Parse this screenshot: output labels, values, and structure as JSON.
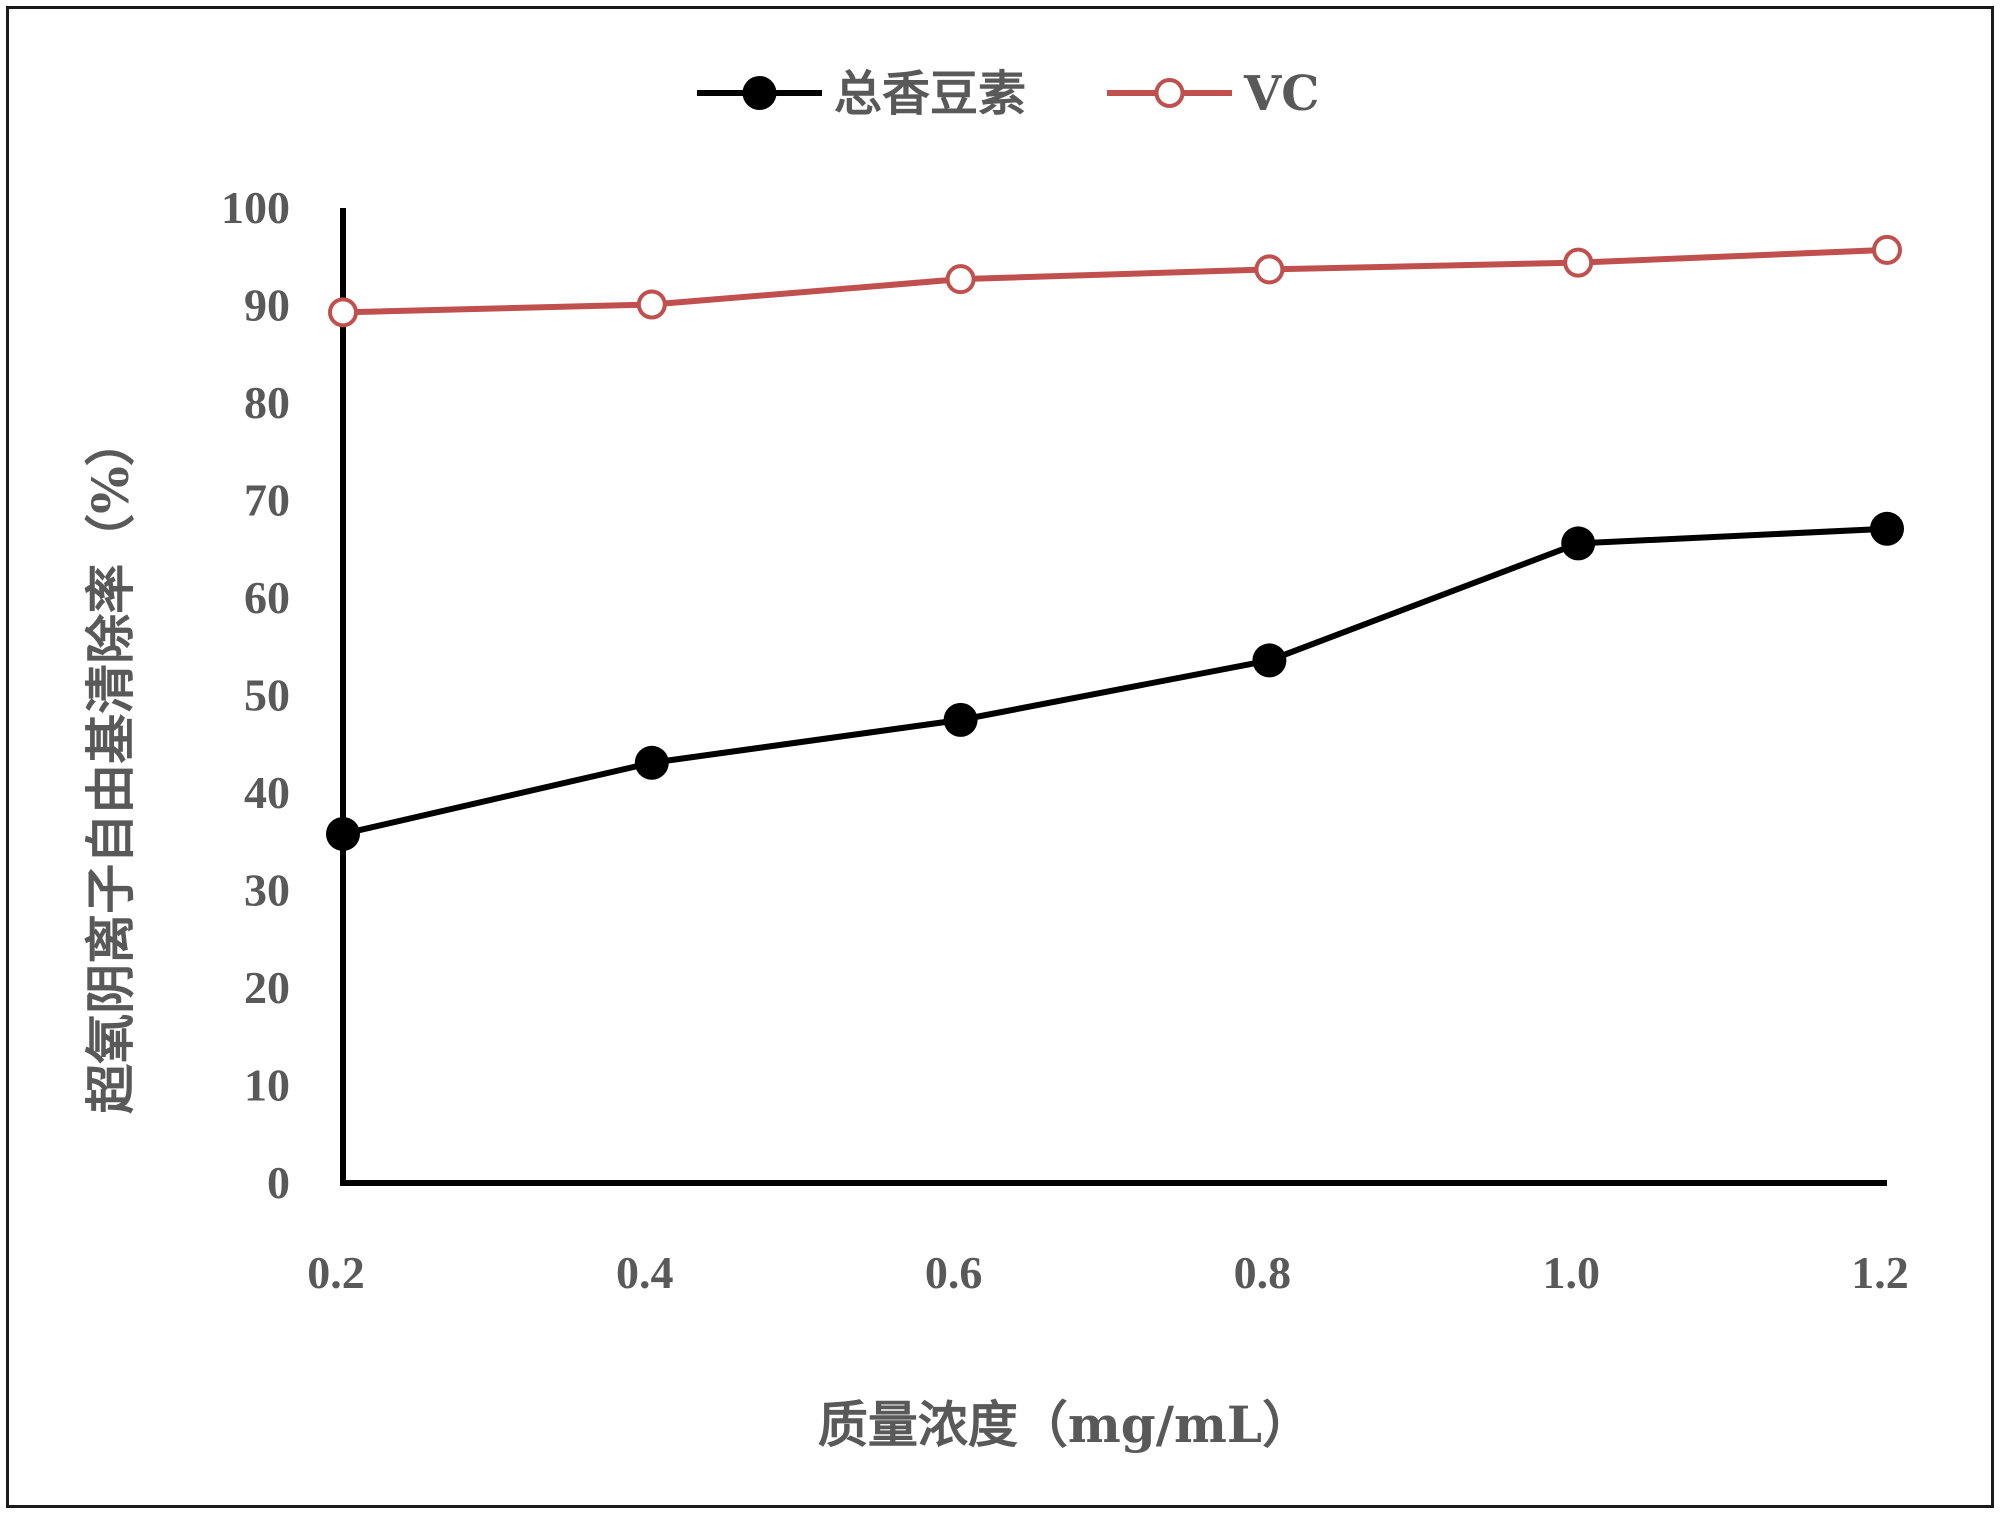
{
  "chart_data": {
    "type": "line",
    "title": "",
    "xlabel": "质量浓度（mg/mL）",
    "ylabel": "超氧阴离子自由基清除率（%）",
    "categories": [
      "0.2",
      "0.4",
      "0.6",
      "0.8",
      "1.0",
      "1.2"
    ],
    "y_ticks": [
      "0",
      "10",
      "20",
      "30",
      "40",
      "50",
      "60",
      "70",
      "80",
      "90",
      "100"
    ],
    "ylim": [
      0,
      100
    ],
    "grid": false,
    "legend": "top-center",
    "series": [
      {
        "name": "总香豆素",
        "values": [
          35.8,
          43.1,
          47.5,
          53.6,
          65.6,
          67.1
        ],
        "color": "#000000",
        "marker": "filled-circle"
      },
      {
        "name": "VC",
        "values": [
          89.3,
          90.1,
          92.7,
          93.7,
          94.4,
          95.7
        ],
        "color": "#c0504d",
        "marker": "open-circle"
      }
    ]
  }
}
